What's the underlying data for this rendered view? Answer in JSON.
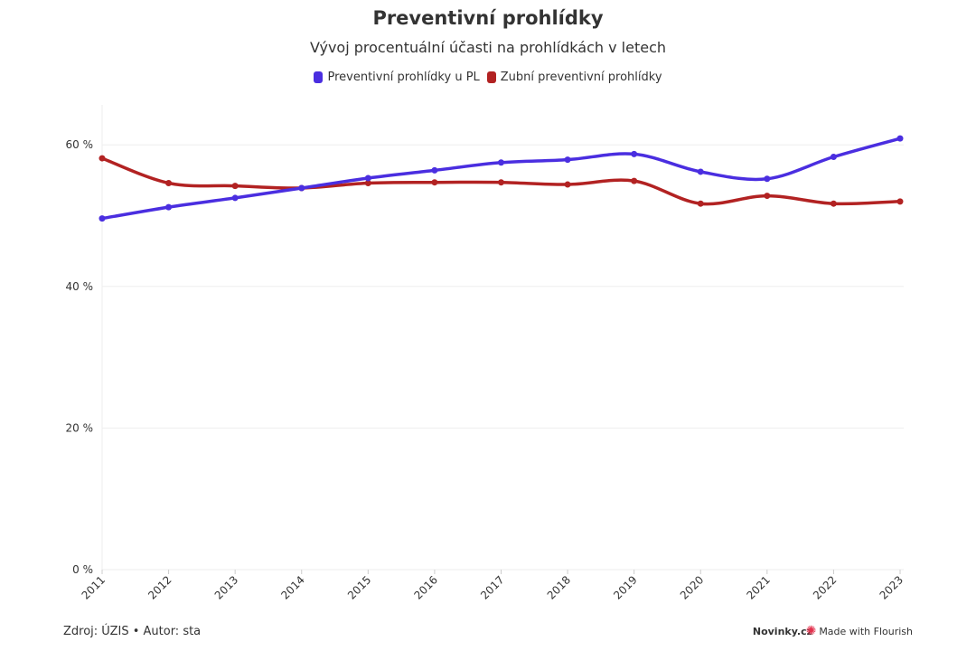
{
  "title": "Preventivní prohlídky",
  "subtitle": "Vývoj procentuální účasti na prohlídkách v letech",
  "footer": {
    "source": "Zdroj: ÚZIS • Autor: sta",
    "brand": "Novinky.cz",
    "flourish": "Made with Flourish",
    "flourish_icon": "flourish-burst-icon"
  },
  "colors": {
    "series1": "#4a2ee0",
    "series2": "#b22222",
    "grid": "#eeeeee",
    "text": "#333333"
  },
  "chart_data": {
    "type": "line",
    "title": "Preventivní prohlídky",
    "subtitle": "Vývoj procentuální účasti na prohlídkách v letech",
    "xlabel": "",
    "ylabel": "",
    "x": [
      "2011",
      "2012",
      "2013",
      "2014",
      "2015",
      "2016",
      "2017",
      "2018",
      "2019",
      "2020",
      "2021",
      "2022",
      "2023"
    ],
    "ylim": [
      0,
      65
    ],
    "yticks": [
      0,
      20,
      40,
      60
    ],
    "ytick_labels": [
      "0 %",
      "20 %",
      "40 %",
      "60 %"
    ],
    "grid": true,
    "legend_position": "top-center",
    "curve": "smooth",
    "series": [
      {
        "name": "Preventivní prohlídky u PL",
        "color": "#4a2ee0",
        "values": [
          49.6,
          51.2,
          52.5,
          53.9,
          55.3,
          56.4,
          57.5,
          57.9,
          58.7,
          56.2,
          55.2,
          58.3,
          60.9
        ]
      },
      {
        "name": "Zubní preventivní prohlídky",
        "color": "#b22222",
        "values": [
          58.1,
          54.6,
          54.2,
          53.9,
          54.6,
          54.7,
          54.7,
          54.4,
          54.9,
          51.7,
          52.8,
          51.7,
          52.0
        ]
      }
    ]
  }
}
